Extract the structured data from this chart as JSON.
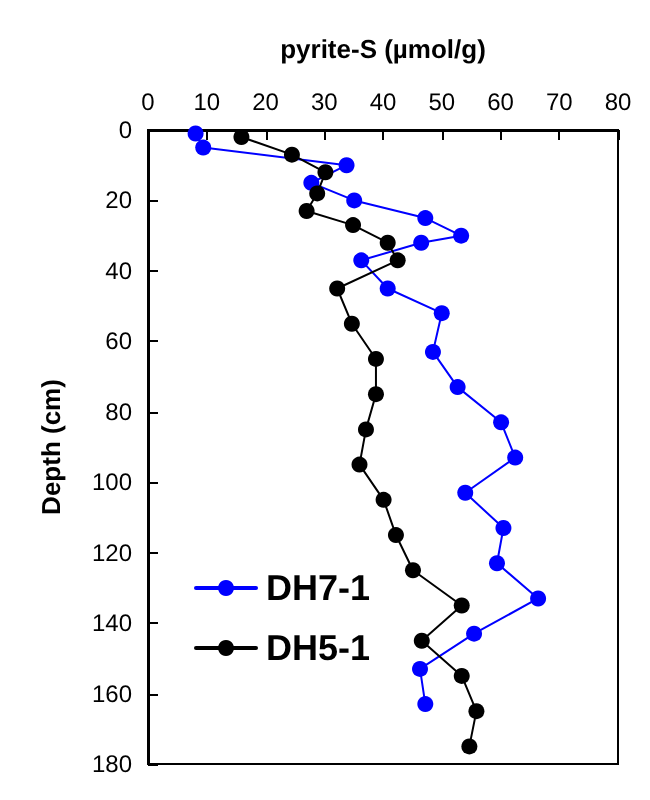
{
  "chart_data": {
    "type": "line",
    "xlabel": "pyrite-S (µmol/g)",
    "ylabel": "Depth (cm)",
    "xlim": [
      0,
      80
    ],
    "xticks": [
      0,
      10,
      20,
      30,
      40,
      50,
      60,
      70,
      80
    ],
    "ylim": [
      180,
      0
    ],
    "yticks": [
      0,
      20,
      40,
      60,
      80,
      100,
      120,
      140,
      160,
      180
    ],
    "legend": "bottom left",
    "marker": "circle",
    "grid": false,
    "series": [
      {
        "name": "DH7-1",
        "color": "#0000ff",
        "x": [
          8.1,
          9.4,
          33.8,
          27.8,
          35.1,
          47.2,
          53.3,
          46.5,
          36.3,
          40.8,
          50,
          48.5,
          52.7,
          60.1,
          62.5,
          54,
          60.5,
          59.4,
          66.4,
          55.5,
          46.3,
          47.2
        ],
        "values": [
          1,
          5,
          10,
          15,
          20,
          25,
          30,
          32,
          37,
          45,
          52,
          63,
          73,
          83,
          93,
          103,
          113,
          123,
          133,
          143,
          153,
          163
        ]
      },
      {
        "name": "DH5-1",
        "color": "#000000",
        "x": [
          15.9,
          24.5,
          30.2,
          28.8,
          27,
          34.9,
          40.8,
          42.5,
          32.2,
          34.7,
          38.8,
          38.8,
          37.1,
          36,
          40.1,
          42.2,
          45.1,
          53.4,
          46.6,
          53.4,
          55.9,
          54.7
        ],
        "values": [
          2,
          7,
          12,
          18,
          23,
          27,
          32,
          37,
          45,
          55,
          65,
          75,
          85,
          95,
          105,
          115,
          125,
          135,
          145,
          155,
          165,
          175
        ]
      }
    ]
  }
}
